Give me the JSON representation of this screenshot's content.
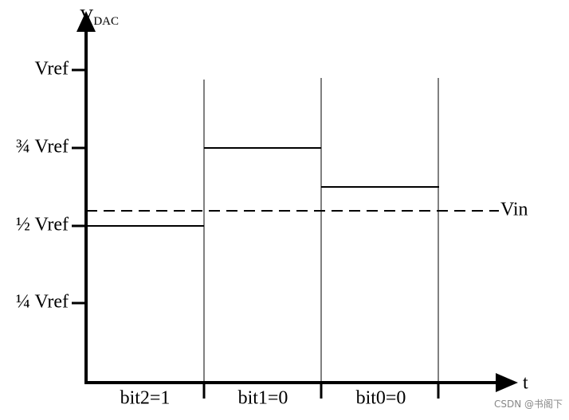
{
  "axis": {
    "y_label": "V",
    "y_label_sub": "DAC",
    "x_label": "t"
  },
  "levels": [
    "Vref",
    "¾ Vref",
    "½ Vref",
    "¼ Vref"
  ],
  "reference": "Vin",
  "bits": [
    "bit2=1",
    "bit1=0",
    "bit0=0"
  ],
  "watermark": "CSDN @书阁下"
}
